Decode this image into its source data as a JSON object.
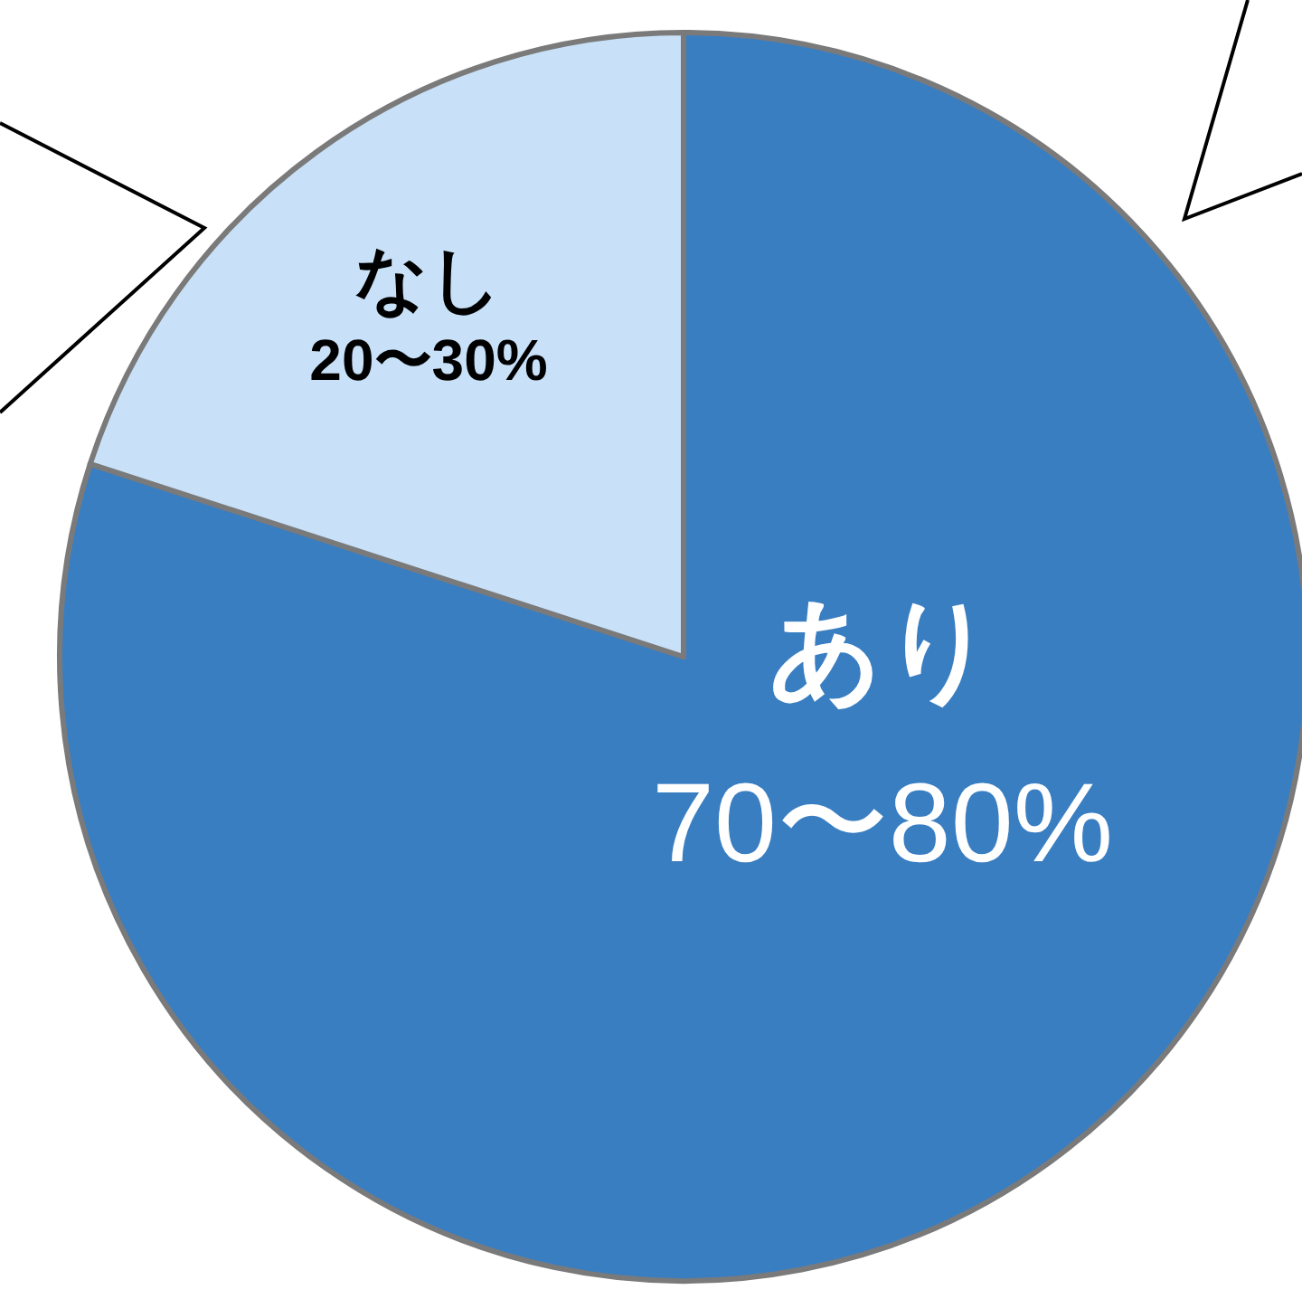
{
  "chart_data": {
    "type": "pie",
    "categories": [
      "あり",
      "なし"
    ],
    "values": [
      80,
      20
    ],
    "colors": [
      "#3a7ec2",
      "#c8e1f8"
    ],
    "value_labels": [
      "70〜80%",
      "20〜30%"
    ]
  }
}
